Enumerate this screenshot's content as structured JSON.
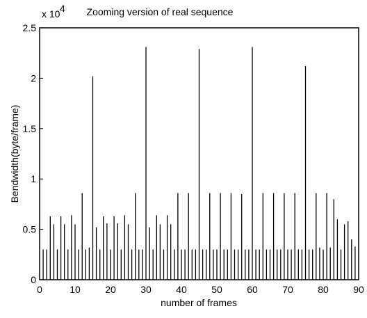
{
  "chart_data": {
    "type": "bar",
    "title": "Zooming version of real sequence",
    "xlabel": "number of frames",
    "ylabel": "Bendwidth(byte/frame)",
    "y_multiplier": "x 10",
    "y_multiplier_exponent": "4",
    "xlim": [
      0,
      90
    ],
    "ylim": [
      0,
      2.5
    ],
    "xticks": [
      "0",
      "10",
      "20",
      "30",
      "40",
      "50",
      "60",
      "70",
      "80",
      "90"
    ],
    "yticks": [
      "0",
      "0.5",
      "1",
      "1.5",
      "2",
      "2.5"
    ],
    "grid": false,
    "frames": [
      1,
      2,
      3,
      4,
      5,
      6,
      7,
      8,
      9,
      10,
      11,
      12,
      13,
      14,
      15,
      16,
      17,
      18,
      19,
      20,
      21,
      22,
      23,
      24,
      25,
      26,
      27,
      28,
      29,
      30,
      31,
      32,
      33,
      34,
      35,
      36,
      37,
      38,
      39,
      40,
      41,
      42,
      43,
      44,
      45,
      46,
      47,
      48,
      49,
      50,
      51,
      52,
      53,
      54,
      55,
      56,
      57,
      58,
      59,
      60,
      61,
      62,
      63,
      64,
      65,
      66,
      67,
      68,
      69,
      70,
      71,
      72,
      73,
      74,
      75,
      76,
      77,
      78,
      79,
      80,
      81,
      82,
      83,
      84,
      85,
      86,
      87,
      88,
      89
    ],
    "values": [
      0.3,
      0.3,
      0.63,
      0.55,
      0.3,
      0.63,
      0.55,
      0.3,
      0.64,
      0.55,
      0.3,
      0.86,
      0.3,
      0.32,
      2.02,
      0.52,
      0.3,
      0.63,
      0.56,
      0.3,
      0.63,
      0.56,
      0.3,
      0.64,
      0.55,
      0.3,
      0.86,
      0.3,
      0.3,
      2.31,
      0.52,
      0.3,
      0.64,
      0.55,
      0.3,
      0.64,
      0.55,
      0.3,
      0.86,
      0.3,
      0.3,
      0.86,
      0.3,
      0.3,
      2.29,
      0.3,
      0.3,
      0.86,
      0.3,
      0.3,
      0.86,
      0.3,
      0.3,
      0.86,
      0.3,
      0.3,
      0.85,
      0.3,
      0.3,
      2.31,
      0.3,
      0.3,
      0.86,
      0.3,
      0.3,
      0.86,
      0.3,
      0.3,
      0.86,
      0.3,
      0.3,
      0.86,
      0.3,
      0.3,
      2.12,
      0.3,
      0.3,
      0.86,
      0.32,
      0.3,
      0.86,
      0.32,
      0.8,
      0.6,
      0.3,
      0.55,
      0.58,
      0.4,
      0.33
    ],
    "stroke_color": "#000000",
    "background_color": "#ffffff"
  }
}
